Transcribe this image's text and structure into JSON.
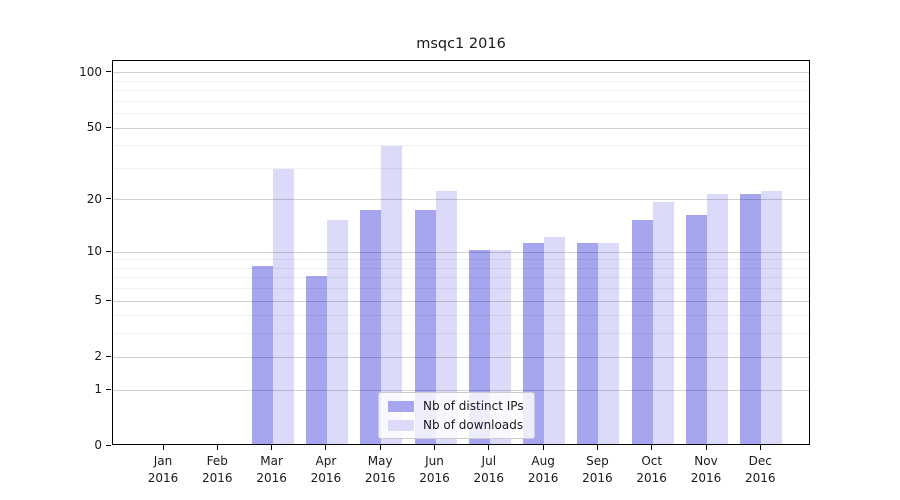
{
  "figure": {
    "title": "msqc1 2016"
  },
  "chart_data": {
    "type": "bar",
    "title": "msqc1 2016",
    "x_categories": [
      "Jan 2016",
      "Feb 2016",
      "Mar 2016",
      "Apr 2016",
      "May 2016",
      "Jun 2016",
      "Jul 2016",
      "Aug 2016",
      "Sep 2016",
      "Oct 2016",
      "Nov 2016",
      "Dec 2016"
    ],
    "series": [
      {
        "name": "Nb of distinct IPs",
        "color": "#a6a6f0",
        "values": [
          0,
          0,
          8,
          7,
          17,
          17,
          10,
          11,
          11,
          15,
          16,
          21
        ]
      },
      {
        "name": "Nb of downloads",
        "color": "#dbdbf9",
        "values": [
          0,
          0,
          29,
          15,
          39,
          22,
          10,
          12,
          11,
          19,
          21,
          22
        ]
      }
    ],
    "yscale": "log1p",
    "ylim": [
      0,
      116
    ],
    "ytick_values": [
      0,
      1,
      2,
      5,
      10,
      20,
      50,
      100
    ],
    "ytick_labels": [
      "0",
      "1",
      "2",
      "5",
      "10",
      "20",
      "50",
      "100"
    ],
    "major_gridline_values": [
      1,
      2,
      5,
      10,
      20,
      50,
      100
    ],
    "minor_gridline_values": [
      3,
      4,
      6,
      7,
      8,
      9,
      30,
      40,
      60,
      70,
      80,
      90
    ],
    "grid": "horizontal",
    "legend_position": "lower center inside",
    "colors": {
      "bar_ips": "#a6a6f0",
      "bar_downloads": "#dbdbf9",
      "major_grid": "rgba(0,0,0,0.18)",
      "minor_grid": "rgba(0,0,0,0.06)",
      "spine": "#000000",
      "text": "#1a1a1a"
    }
  }
}
